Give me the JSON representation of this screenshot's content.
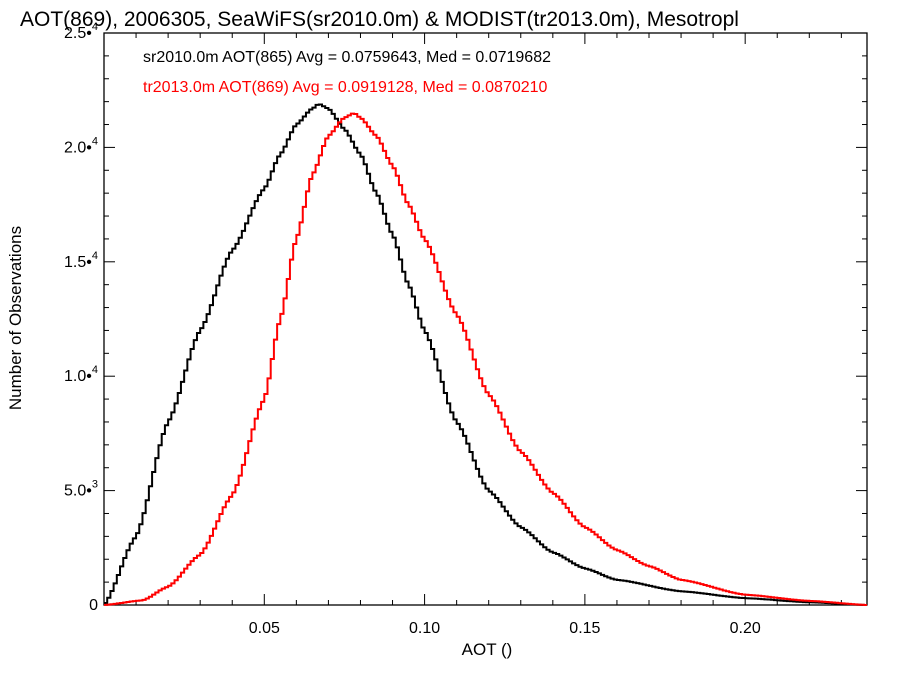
{
  "chart_data": {
    "type": "line",
    "title": "AOT(869), 2006305, SeaWiFS(sr2010.0m) & MODIST(tr2013.0m), Mesotropl",
    "xlabel": "AOT ()",
    "ylabel": "Number of Observations",
    "xlim": [
      0.0,
      0.238
    ],
    "ylim": [
      0,
      25000
    ],
    "x_ticks": [
      0.05,
      0.1,
      0.15,
      0.2
    ],
    "x_tick_labels": [
      "0.05",
      "0.10",
      "0.15",
      "0.20"
    ],
    "y_ticks": [
      0,
      5000,
      10000,
      15000,
      20000,
      25000
    ],
    "y_tick_labels": [
      {
        "mantissa": "0",
        "exp": ""
      },
      {
        "mantissa": "5.0•",
        "exp": "3"
      },
      {
        "mantissa": "1.0•",
        "exp": "4"
      },
      {
        "mantissa": "1.5•",
        "exp": "4"
      },
      {
        "mantissa": "2.0•",
        "exp": "4"
      },
      {
        "mantissa": "2.5•",
        "exp": "4"
      }
    ],
    "grid": false,
    "legend_placement": "top-left",
    "x_step": 0.001,
    "series": [
      {
        "name": "sr2010.0m AOT(865)",
        "legend": "sr2010.0m AOT(865) Avg = 0.0759643, Med = 0.0719682",
        "color": "#000000",
        "x": [
          0.0,
          0.01,
          0.02,
          0.03,
          0.04,
          0.05,
          0.055,
          0.06,
          0.065,
          0.067,
          0.07,
          0.075,
          0.08,
          0.085,
          0.09,
          0.095,
          0.1,
          0.11,
          0.12,
          0.13,
          0.14,
          0.15,
          0.16,
          0.18,
          0.2,
          0.22,
          0.238
        ],
        "y": [
          0,
          3000,
          8000,
          12000,
          15500,
          18200,
          19700,
          21000,
          21700,
          21900,
          21700,
          20800,
          19700,
          18000,
          16200,
          14000,
          12000,
          8000,
          5000,
          3400,
          2300,
          1600,
          1100,
          600,
          300,
          120,
          0
        ]
      },
      {
        "name": "tr2013.0m AOT(869)",
        "legend": "tr2013.0m AOT(869) Avg = 0.0919128, Med = 0.0870210",
        "color": "#ff0000",
        "x": [
          0.0,
          0.012,
          0.02,
          0.03,
          0.04,
          0.05,
          0.055,
          0.06,
          0.065,
          0.07,
          0.075,
          0.078,
          0.08,
          0.085,
          0.09,
          0.095,
          0.1,
          0.11,
          0.12,
          0.13,
          0.14,
          0.15,
          0.16,
          0.17,
          0.18,
          0.2,
          0.22,
          0.238
        ],
        "y": [
          0,
          200,
          800,
          2200,
          4800,
          9000,
          12500,
          16000,
          18800,
          20500,
          21300,
          21500,
          21300,
          20500,
          19200,
          17500,
          16000,
          12700,
          9200,
          6700,
          4900,
          3400,
          2400,
          1700,
          1100,
          450,
          180,
          0
        ]
      }
    ]
  }
}
